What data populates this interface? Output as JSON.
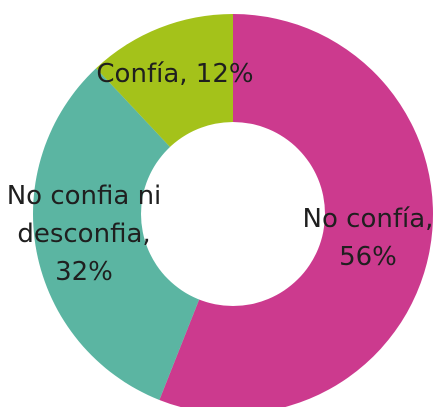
{
  "chart_data": {
    "type": "pie",
    "donut": true,
    "slices": [
      {
        "label": "No confía",
        "value": 56,
        "display": [
          "No confía,",
          "56%"
        ],
        "color": "#cc3a8e"
      },
      {
        "label": "No confia ni desconfia",
        "value": 32,
        "display": [
          "No confia ni",
          "desconfia,",
          "32%"
        ],
        "color": "#5bb5a2"
      },
      {
        "label": "Confía",
        "value": 12,
        "display": [
          "Confía, 12%"
        ],
        "color": "#a4c21a"
      }
    ],
    "start_angle_deg": 0,
    "direction": "clockwise"
  }
}
